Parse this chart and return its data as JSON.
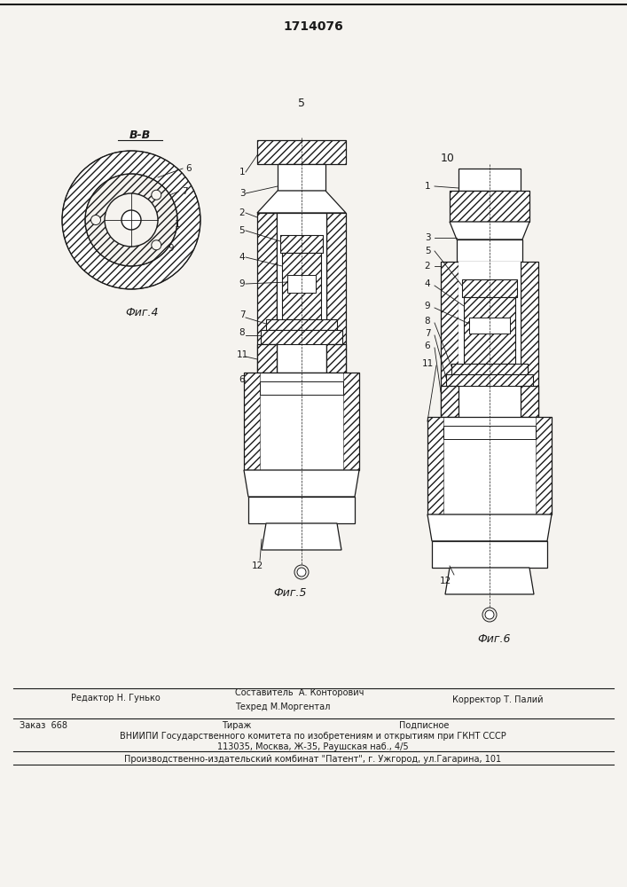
{
  "patent_number": "1714076",
  "fig4_label": "В-В",
  "fig4_caption": "Фиг.4",
  "fig5_caption": "Фиг.5",
  "fig6_caption": "Фиг.6",
  "fig5_number": "5",
  "fig6_number": "10",
  "editor_line": "Редактор Н. Гунько",
  "composer_line": "Составитель  А. Конторович",
  "techred_line": "Техред М.Моргентал",
  "corrector_line": "Корректор Т. Палий",
  "order_line": "Заказ  668",
  "tirazh_line": "Тираж",
  "podpisnoe_line": "Подписное",
  "vniiipi_line": "ВНИИПИ Государственного комитета по изобретениям и открытиям при ГКНТ СССР",
  "address_line": "113035, Москва, Ж-35, Раушская наб., 4/5",
  "publisher_line": "Производственно-издательский комбинат \"Патент\", г. Ужгород, ул.Гагарина, 101",
  "bg_color": "#f5f3ef",
  "line_color": "#1a1a1a"
}
